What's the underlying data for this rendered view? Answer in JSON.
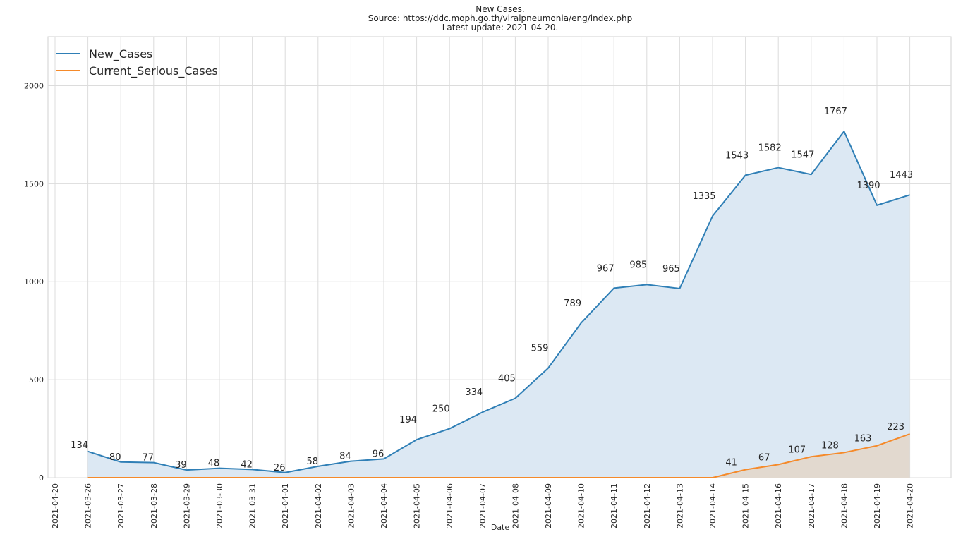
{
  "chart_data": {
    "type": "area",
    "title_lines": [
      "New Cases.",
      "Source: https://ddc.moph.go.th/viralpneumonia/eng/index.php",
      "Latest update: 2021-04-20."
    ],
    "xlabel": "Date",
    "ylabel": "",
    "ylim": [
      0,
      2250
    ],
    "yticks": [
      0,
      500,
      1000,
      1500,
      2000
    ],
    "grid": true,
    "legend_position": "top-left",
    "xticks": [
      "2021-04-20",
      "2021-03-26",
      "2021-03-27",
      "2021-03-28",
      "2021-03-29",
      "2021-03-30",
      "2021-03-31",
      "2021-04-01",
      "2021-04-02",
      "2021-04-03",
      "2021-04-04",
      "2021-04-05",
      "2021-04-06",
      "2021-04-07",
      "2021-04-08",
      "2021-04-09",
      "2021-04-10",
      "2021-04-11",
      "2021-04-12",
      "2021-04-13",
      "2021-04-14",
      "2021-04-15",
      "2021-04-16",
      "2021-04-17",
      "2021-04-18",
      "2021-04-19",
      "2021-04-20"
    ],
    "categories": [
      "2021-03-26",
      "2021-03-27",
      "2021-03-28",
      "2021-03-29",
      "2021-03-30",
      "2021-03-31",
      "2021-04-01",
      "2021-04-02",
      "2021-04-03",
      "2021-04-04",
      "2021-04-05",
      "2021-04-06",
      "2021-04-07",
      "2021-04-08",
      "2021-04-09",
      "2021-04-10",
      "2021-04-11",
      "2021-04-12",
      "2021-04-13",
      "2021-04-14",
      "2021-04-15",
      "2021-04-16",
      "2021-04-17",
      "2021-04-18",
      "2021-04-19",
      "2021-04-20"
    ],
    "series": [
      {
        "name": "New_Cases",
        "color": "#2f7fb6",
        "fill": "#dce8f3",
        "values": [
          134,
          80,
          77,
          39,
          48,
          42,
          26,
          58,
          84,
          96,
          194,
          250,
          334,
          405,
          559,
          789,
          967,
          985,
          965,
          1335,
          1543,
          1582,
          1547,
          1767,
          1390,
          1443
        ],
        "labels": [
          "134",
          "80",
          "77",
          "39",
          "48",
          "42",
          "26",
          "58",
          "84",
          "96",
          "194",
          "250",
          "334",
          "405",
          "559",
          "789",
          "967",
          "985",
          "965",
          "1335",
          "1543",
          "1582",
          "1547",
          "1767",
          "1390",
          "1443"
        ]
      },
      {
        "name": "Current_Serious_Cases",
        "color": "#f58a2a",
        "fill": "#e2d8cc",
        "values": [
          0,
          0,
          0,
          0,
          0,
          0,
          0,
          0,
          0,
          0,
          0,
          0,
          0,
          0,
          0,
          0,
          0,
          0,
          0,
          0,
          41,
          67,
          107,
          128,
          163,
          223
        ],
        "labels": [
          "41",
          "67",
          "107",
          "128",
          "163",
          "223"
        ],
        "label_start_index": 20
      }
    ]
  }
}
